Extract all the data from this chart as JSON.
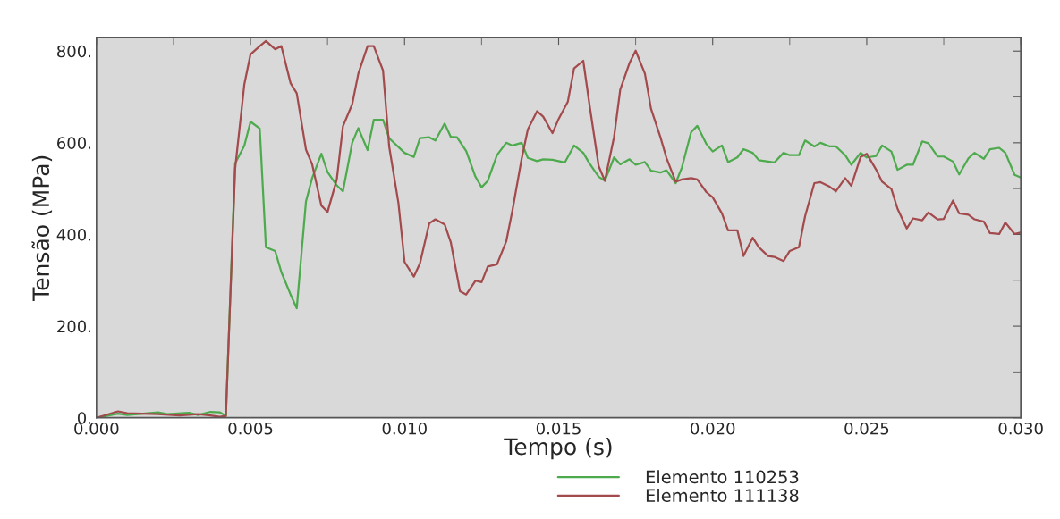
{
  "chart_data": {
    "type": "line",
    "xlabel": "Tempo (s)",
    "ylabel": "Tensão (MPa)",
    "xlim": [
      0,
      0.03
    ],
    "ylim": [
      0,
      830
    ],
    "xticks": [
      {
        "value": 0,
        "label": "0.000"
      },
      {
        "value": 0.005,
        "label": "0.005"
      },
      {
        "value": 0.01,
        "label": "0.010"
      },
      {
        "value": 0.015,
        "label": "0.015"
      },
      {
        "value": 0.02,
        "label": "0.020"
      },
      {
        "value": 0.025,
        "label": "0.025"
      },
      {
        "value": 0.03,
        "label": "0.030"
      }
    ],
    "yticks": [
      {
        "value": 0,
        "label": "0."
      },
      {
        "value": 200,
        "label": "200."
      },
      {
        "value": 400,
        "label": "400."
      },
      {
        "value": 600,
        "label": "600."
      },
      {
        "value": 800,
        "label": "800."
      }
    ],
    "grid": false,
    "legend": "bottom",
    "line_style": "solid",
    "marker": "none",
    "series": [
      {
        "name": "Elemento 110253",
        "color": "#4daa4d",
        "x": [
          0,
          0.0007,
          0.001,
          0.002,
          0.0023,
          0.003,
          0.0033,
          0.0037,
          0.004,
          0.0042,
          0.0045,
          0.0048,
          0.005,
          0.0053,
          0.0055,
          0.0058,
          0.006,
          0.0063,
          0.0065,
          0.0068,
          0.007,
          0.0073,
          0.0075,
          0.0078,
          0.008,
          0.0083,
          0.0085,
          0.0088,
          0.009,
          0.0093,
          0.0095,
          0.01,
          0.0103,
          0.0105,
          0.0108,
          0.011,
          0.0113,
          0.0115,
          0.0117,
          0.012,
          0.0123,
          0.0125,
          0.0127,
          0.013,
          0.0133,
          0.0135,
          0.0138,
          0.014,
          0.0143,
          0.0145,
          0.0148,
          0.0152,
          0.0155,
          0.0158,
          0.016,
          0.0163,
          0.0165,
          0.0168,
          0.017,
          0.0173,
          0.0175,
          0.0178,
          0.018,
          0.0183,
          0.0185,
          0.0188,
          0.019,
          0.0193,
          0.0195,
          0.0198,
          0.02,
          0.0203,
          0.0205,
          0.0208,
          0.021,
          0.0213,
          0.0215,
          0.022,
          0.0223,
          0.0225,
          0.0228,
          0.023,
          0.0233,
          0.0235,
          0.0238,
          0.024,
          0.0243,
          0.0245,
          0.0248,
          0.025,
          0.0253,
          0.0255,
          0.0258,
          0.026,
          0.0263,
          0.0265,
          0.0268,
          0.027,
          0.0273,
          0.0275,
          0.0278,
          0.028,
          0.0283,
          0.0285,
          0.0288,
          0.029,
          0.0293,
          0.0295,
          0.0298,
          0.03
        ],
        "values": [
          0,
          9,
          6,
          12,
          8,
          11,
          6,
          13,
          12,
          4,
          555,
          594,
          646,
          631,
          372,
          364,
          318,
          269,
          239,
          472,
          523,
          576,
          536,
          507,
          494,
          600,
          632,
          584,
          650,
          650,
          610,
          578,
          569,
          610,
          612,
          605,
          642,
          613,
          612,
          582,
          526,
          503,
          517,
          573,
          600,
          594,
          600,
          567,
          560,
          564,
          563,
          557,
          594,
          578,
          555,
          526,
          517,
          568,
          553,
          564,
          552,
          558,
          539,
          535,
          540,
          512,
          546,
          623,
          637,
          597,
          581,
          594,
          558,
          568,
          586,
          578,
          562,
          557,
          578,
          573,
          573,
          605,
          592,
          600,
          592,
          592,
          573,
          552,
          578,
          568,
          571,
          594,
          581,
          541,
          552,
          552,
          603,
          599,
          570,
          570,
          559,
          531,
          566,
          578,
          565,
          586,
          589,
          578,
          530,
          524
        ]
      },
      {
        "name": "Elemento 111138",
        "color": "#a34a4d",
        "x": [
          0,
          0.0007,
          0.001,
          0.002,
          0.0027,
          0.0033,
          0.0037,
          0.004,
          0.0042,
          0.0045,
          0.0048,
          0.005,
          0.0053,
          0.0055,
          0.0058,
          0.006,
          0.0063,
          0.0065,
          0.0068,
          0.007,
          0.0073,
          0.0075,
          0.0078,
          0.008,
          0.0083,
          0.0085,
          0.0088,
          0.009,
          0.0093,
          0.0095,
          0.0098,
          0.01,
          0.0103,
          0.0105,
          0.0108,
          0.011,
          0.0113,
          0.0115,
          0.0118,
          0.012,
          0.0123,
          0.0125,
          0.0127,
          0.013,
          0.0133,
          0.0135,
          0.0138,
          0.014,
          0.0143,
          0.0145,
          0.0148,
          0.015,
          0.0153,
          0.0155,
          0.0158,
          0.016,
          0.0163,
          0.0165,
          0.0168,
          0.017,
          0.0173,
          0.0175,
          0.0178,
          0.018,
          0.0183,
          0.0185,
          0.0188,
          0.019,
          0.0193,
          0.0195,
          0.0198,
          0.02,
          0.0203,
          0.0205,
          0.0208,
          0.021,
          0.0213,
          0.0215,
          0.0218,
          0.022,
          0.0223,
          0.0225,
          0.0228,
          0.023,
          0.0233,
          0.0235,
          0.0238,
          0.024,
          0.0243,
          0.0245,
          0.0248,
          0.025,
          0.0253,
          0.0255,
          0.0258,
          0.026,
          0.0263,
          0.0265,
          0.0268,
          0.027,
          0.0273,
          0.0275,
          0.0278,
          0.028,
          0.0283,
          0.0285,
          0.0288,
          0.029,
          0.0293,
          0.0295,
          0.0298,
          0.03
        ],
        "values": [
          0,
          14,
          10,
          8,
          5,
          8,
          5,
          2,
          4,
          543,
          728,
          793,
          811,
          822,
          804,
          811,
          730,
          708,
          585,
          553,
          463,
          449,
          520,
          636,
          684,
          751,
          811,
          811,
          758,
          592,
          469,
          340,
          308,
          337,
          424,
          433,
          422,
          383,
          276,
          269,
          299,
          296,
          330,
          335,
          385,
          452,
          565,
          629,
          669,
          657,
          621,
          652,
          690,
          762,
          779,
          684,
          549,
          517,
          613,
          716,
          774,
          801,
          751,
          674,
          613,
          567,
          515,
          520,
          523,
          520,
          492,
          481,
          446,
          409,
          409,
          353,
          393,
          372,
          353,
          351,
          342,
          364,
          372,
          440,
          512,
          514,
          504,
          494,
          523,
          506,
          569,
          576,
          542,
          515,
          499,
          456,
          413,
          435,
          431,
          448,
          433,
          434,
          474,
          446,
          443,
          433,
          428,
          403,
          401,
          426,
          401,
          404
        ]
      }
    ]
  }
}
